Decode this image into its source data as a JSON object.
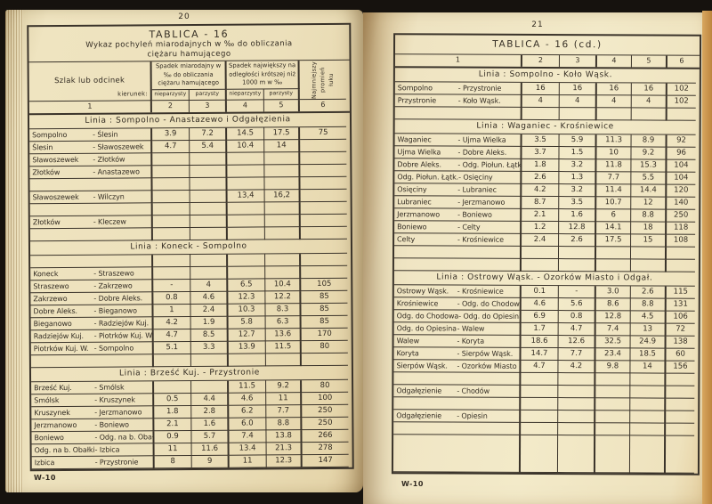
{
  "meta": {
    "document_type": "scanned book spread",
    "colors": {
      "paper_left": "#ece0bb",
      "paper_right": "#f3eac9",
      "ink": "#332c23",
      "table_line": "#3a332a",
      "backdrop": "#16120e",
      "page_edge_orange": "#cf9a55"
    }
  },
  "book": {
    "left_page": {
      "page_number": "20",
      "footer": "W-10",
      "title": "TABLICA - 16",
      "subtitle_line1": "Wykaz pochyleń miarodajnych w ‰ do obliczania",
      "subtitle_line2": "ciężaru hamującego",
      "header": {
        "route_label": "Szlak lub odcinek",
        "direction_label": "kierunek:",
        "group1": "Spadek miarodajny w ‰ do obliczania ciężaru hamującego",
        "group2": "Spadek największy na odległości krótszej niż 1000 m w ‰",
        "group3": "Najmniejszy promień łuku",
        "sub": [
          "nieparzysty",
          "parzysty",
          "nieparzysty",
          "parzysty"
        ],
        "col_numbers": [
          "1",
          "2",
          "3",
          "4",
          "5",
          "6"
        ]
      },
      "sections": [
        {
          "title": "Linia :  Sompolno - Anastazewo i Odgałęzienia",
          "rows": [
            {
              "from": "Sompolno",
              "to": "- Ślesin",
              "v": [
                "3.9",
                "7.2",
                "14.5",
                "17.5",
                "75"
              ]
            },
            {
              "from": "Ślesin",
              "to": "- Sławoszewek",
              "v": [
                "4.7",
                "5.4",
                "10.4",
                "14",
                ""
              ]
            },
            {
              "from": "Sławoszewek",
              "to": "- Złotków",
              "v": [
                "",
                "",
                "",
                "",
                ""
              ]
            },
            {
              "from": "Złotków",
              "to": "- Anastazewo",
              "v": [
                "",
                "",
                "",
                "",
                ""
              ]
            },
            {
              "from": "",
              "to": "",
              "v": [
                "",
                "",
                "",
                "",
                ""
              ]
            },
            {
              "from": "Sławoszewek",
              "to": "- Wilczyn",
              "v": [
                "",
                "",
                "13,4",
                "16,2",
                ""
              ]
            },
            {
              "from": "",
              "to": "",
              "v": [
                "",
                "",
                "",
                "",
                ""
              ]
            },
            {
              "from": "Złotków",
              "to": "- Kleczew",
              "v": [
                "",
                "",
                "",
                "",
                ""
              ]
            },
            {
              "from": "",
              "to": "",
              "v": [
                "",
                "",
                "",
                "",
                ""
              ]
            }
          ]
        },
        {
          "title": "Linia :  Koneck - Sompolno",
          "rows": [
            {
              "from": "",
              "to": "",
              "v": [
                "",
                "",
                "",
                "",
                ""
              ]
            },
            {
              "from": "Koneck",
              "to": "- Straszewo",
              "v": [
                "",
                "",
                "",
                "",
                ""
              ]
            },
            {
              "from": "Straszewo",
              "to": "- Zakrzewo",
              "v": [
                "-",
                "4",
                "6.5",
                "10.4",
                "105"
              ]
            },
            {
              "from": "Zakrzewo",
              "to": "- Dobre Aleks.",
              "v": [
                "0.8",
                "4.6",
                "12.3",
                "12.2",
                "85"
              ]
            },
            {
              "from": "Dobre Aleks.",
              "to": "- Bieganowo",
              "v": [
                "1",
                "2.4",
                "10.3",
                "8.3",
                "85"
              ]
            },
            {
              "from": "Bieganowo",
              "to": "- Radziejów Kuj.",
              "v": [
                "4.2",
                "1.9",
                "5.8",
                "6.3",
                "85"
              ]
            },
            {
              "from": "Radziejów Kuj.",
              "to": "- Piotrków Kuj. W.",
              "v": [
                "4.7",
                "8.5",
                "12.7",
                "13.6",
                "170"
              ]
            },
            {
              "from": "Piotrków Kuj. W.",
              "to": "- Sompolno",
              "v": [
                "5.1",
                "3.3",
                "13.9",
                "11.5",
                "80"
              ]
            },
            {
              "from": "",
              "to": "",
              "v": [
                "",
                "",
                "",
                "",
                ""
              ]
            }
          ]
        },
        {
          "title": "Linia :  Brześć Kuj. - Przystronie",
          "rows": [
            {
              "from": "Brześć Kuj.",
              "to": "- Smólsk",
              "v": [
                "",
                "",
                "11.5",
                "9.2",
                "80"
              ]
            },
            {
              "from": "Smólsk",
              "to": "- Kruszynek",
              "v": [
                "0.5",
                "4.4",
                "4.6",
                "11",
                "100"
              ]
            },
            {
              "from": "Kruszynek",
              "to": "- Jerzmanowo",
              "v": [
                "1.8",
                "2.8",
                "6.2",
                "7.7",
                "250"
              ]
            },
            {
              "from": "Jerzmanowo",
              "to": "- Boniewo",
              "v": [
                "2.1",
                "1.6",
                "6.0",
                "8.8",
                "250"
              ]
            },
            {
              "from": "Boniewo",
              "to": "- Odg. na b. Obałki",
              "v": [
                "0.9",
                "5.7",
                "7.4",
                "13.8",
                "266"
              ]
            },
            {
              "from": "Odg. na b. Obałki",
              "to": "- Izbica",
              "v": [
                "11",
                "11.6",
                "13.4",
                "21.3",
                "278"
              ]
            },
            {
              "from": "Izbica",
              "to": "- Przystronie",
              "v": [
                "8",
                "9",
                "11",
                "12.3",
                "147"
              ]
            }
          ]
        }
      ]
    },
    "right_page": {
      "page_number": "21",
      "footer": "W-10",
      "title": "TABLICA - 16   (cd.)",
      "header": {
        "col_numbers": [
          "1",
          "2",
          "3",
          "4",
          "5",
          "6"
        ]
      },
      "sections": [
        {
          "title": "Linia :  Sompolno - Koło Wąsk.",
          "rows": [
            {
              "from": "Sompolno",
              "to": "- Przystronie",
              "v": [
                "16",
                "16",
                "16",
                "16",
                "102"
              ]
            },
            {
              "from": "Przystronie",
              "to": "- Koło Wąsk.",
              "v": [
                "4",
                "4",
                "4",
                "4",
                "102"
              ]
            },
            {
              "from": "",
              "to": "",
              "v": [
                "",
                "",
                "",
                "",
                ""
              ]
            }
          ]
        },
        {
          "title": "Linia :  Waganiec - Krośniewice",
          "rows": [
            {
              "from": "Waganiec",
              "to": "- Ujma Wielka",
              "v": [
                "3.5",
                "5.9",
                "11.3",
                "8.9",
                "92"
              ]
            },
            {
              "from": "Ujma Wielka",
              "to": "- Dobre Aleks.",
              "v": [
                "3.7",
                "1.5",
                "10",
                "9.2",
                "96"
              ]
            },
            {
              "from": "Dobre Aleks.",
              "to": "- Odg. Piołun. Łątk.",
              "v": [
                "1.8",
                "3.2",
                "11.8",
                "15.3",
                "104"
              ]
            },
            {
              "from": "Odg. Piołun. Łątk.",
              "to": "- Osięciny",
              "v": [
                "2.6",
                "1.3",
                "7.7",
                "5.5",
                "104"
              ]
            },
            {
              "from": "Osięciny",
              "to": "- Lubraniec",
              "v": [
                "4.2",
                "3.2",
                "11.4",
                "14.4",
                "120"
              ]
            },
            {
              "from": "Lubraniec",
              "to": "- Jerzmanowo",
              "v": [
                "8.7",
                "3.5",
                "10.7",
                "12",
                "140"
              ]
            },
            {
              "from": "Jerzmanowo",
              "to": "- Boniewo",
              "v": [
                "2.1",
                "1.6",
                "6",
                "8.8",
                "250"
              ]
            },
            {
              "from": "Boniewo",
              "to": "- Celty",
              "v": [
                "1.2",
                "12.8",
                "14.1",
                "18",
                "118"
              ]
            },
            {
              "from": "Celty",
              "to": "- Krośniewice",
              "v": [
                "2.4",
                "2.6",
                "17.5",
                "15",
                "108"
              ]
            },
            {
              "from": "",
              "to": "",
              "v": [
                "",
                "",
                "",
                "",
                ""
              ]
            },
            {
              "from": "",
              "to": "",
              "v": [
                "",
                "",
                "",
                "",
                ""
              ]
            }
          ]
        },
        {
          "title": "Linia :  Ostrowy Wąsk. - Ozorków Miasto i Odgał.",
          "rows": [
            {
              "from": "Ostrowy Wąsk.",
              "to": "- Krośniewice",
              "v": [
                "0.1",
                "-",
                "3.0",
                "2.6",
                "115"
              ]
            },
            {
              "from": "Krośniewice",
              "to": "- Odg. do Chodowa",
              "v": [
                "4.6",
                "5.6",
                "8.6",
                "8.8",
                "131"
              ]
            },
            {
              "from": "Odg. do Chodowa",
              "to": "- Odg. do Opiesina",
              "v": [
                "6.9",
                "0.8",
                "12.8",
                "4.5",
                "106"
              ]
            },
            {
              "from": "Odg. do Opiesina",
              "to": "- Walew",
              "v": [
                "1.7",
                "4.7",
                "7.4",
                "13",
                "72"
              ]
            },
            {
              "from": "Walew",
              "to": "- Koryta",
              "v": [
                "18.6",
                "12.6",
                "32.5",
                "24.9",
                "138"
              ]
            },
            {
              "from": "Koryta",
              "to": "- Sierpów Wąsk.",
              "v": [
                "14.7",
                "7.7",
                "23.4",
                "18.5",
                "60"
              ]
            },
            {
              "from": "Sierpów Wąsk.",
              "to": "- Ozorków Miasto",
              "v": [
                "4.7",
                "4.2",
                "9.8",
                "14",
                "156"
              ]
            },
            {
              "from": "",
              "to": "",
              "v": [
                "",
                "",
                "",
                "",
                ""
              ]
            },
            {
              "from": "Odgałęzienie",
              "to": "- Chodów",
              "v": [
                "",
                "",
                "",
                "",
                ""
              ]
            },
            {
              "from": "",
              "to": "",
              "v": [
                "",
                "",
                "",
                "",
                ""
              ]
            },
            {
              "from": "Odgałęzienie",
              "to": "- Opiesin",
              "v": [
                "",
                "",
                "",
                "",
                ""
              ]
            },
            {
              "from": "",
              "to": "",
              "v": [
                "",
                "",
                "",
                "",
                ""
              ]
            },
            {
              "from": "",
              "to": "",
              "v": [
                "",
                "",
                "",
                "",
                ""
              ],
              "h": 42
            }
          ]
        }
      ]
    }
  }
}
